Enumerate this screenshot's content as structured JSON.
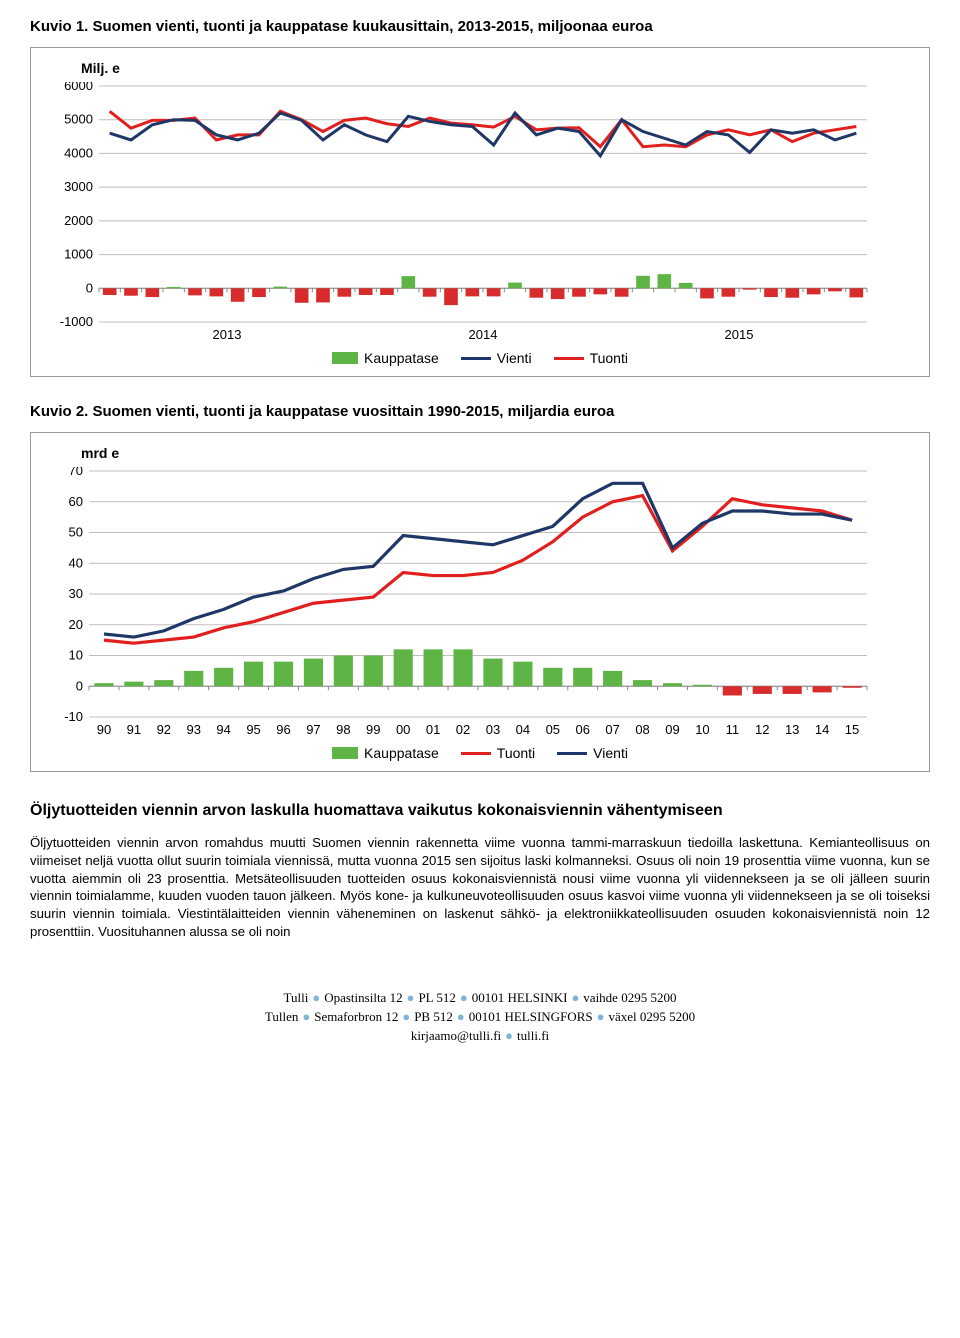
{
  "chart1": {
    "type": "combo_bar_line",
    "title": "Kuvio 1. Suomen vienti, tuonti ja kauppatase kuukausittain, 2013-2015, miljoonaa euroa",
    "axis_label": "Milj. e",
    "ylim": [
      -1000,
      6000
    ],
    "yticks": [
      -1000,
      0,
      1000,
      2000,
      3000,
      4000,
      5000,
      6000
    ],
    "x_year_labels": [
      "2013",
      "2014",
      "2015"
    ],
    "months_count": 36,
    "kauppatase": [
      -200,
      -220,
      -260,
      40,
      -210,
      -240,
      -400,
      -260,
      50,
      -430,
      -420,
      -250,
      -200,
      -200,
      360,
      -250,
      -500,
      -240,
      -240,
      170,
      -280,
      -320,
      -250,
      -180,
      -250,
      370,
      420,
      160,
      -300,
      -250,
      -40,
      -260,
      -280,
      -180,
      -90,
      -270
    ],
    "vienti": [
      4600,
      4400,
      4850,
      5000,
      4980,
      4550,
      4400,
      4600,
      5200,
      4980,
      4400,
      4850,
      4550,
      4350,
      5100,
      4950,
      4850,
      4800,
      4250,
      5200,
      4550,
      4750,
      4650,
      3930,
      5000,
      4650,
      4450,
      4250,
      4650,
      4550,
      4030,
      4700,
      4600,
      4700,
      4400,
      4600
    ],
    "tuonti": [
      5250,
      4750,
      4980,
      4980,
      5050,
      4400,
      4550,
      4550,
      5250,
      5000,
      4650,
      4980,
      5050,
      4880,
      4800,
      5050,
      4900,
      4850,
      4780,
      5100,
      4700,
      4750,
      4760,
      4200,
      5000,
      4200,
      4250,
      4200,
      4550,
      4700,
      4550,
      4700,
      4350,
      4600,
      4700,
      4800
    ],
    "legend": [
      "Kauppatase",
      "Vienti",
      "Tuonti"
    ],
    "colors": {
      "kauppatase_pos": "#5fb446",
      "kauppatase_neg": "#d82c2c",
      "vienti": "#1f3766",
      "tuonti": "#e11f1f",
      "grid": "#bfbfbf",
      "axis_text": "#000000"
    },
    "tick_fontsize": 13
  },
  "chart2": {
    "type": "combo_bar_line",
    "title": "Kuvio 2. Suomen vienti, tuonti ja kauppatase vuosittain 1990-2015, miljardia euroa",
    "axis_label": "mrd e",
    "ylim": [
      -10,
      70
    ],
    "yticks": [
      -10,
      0,
      10,
      20,
      30,
      40,
      50,
      60,
      70
    ],
    "years": [
      "90",
      "91",
      "92",
      "93",
      "94",
      "95",
      "96",
      "97",
      "98",
      "99",
      "00",
      "01",
      "02",
      "03",
      "04",
      "05",
      "06",
      "07",
      "08",
      "09",
      "10",
      "11",
      "12",
      "13",
      "14",
      "15"
    ],
    "kauppatase": [
      1,
      1.5,
      2,
      5,
      6,
      8,
      8,
      9,
      10,
      10,
      12,
      12,
      12,
      9,
      8,
      6,
      6,
      5,
      2,
      1,
      0.5,
      -3,
      -2.5,
      -2.5,
      -2,
      -0.5
    ],
    "tuonti": [
      15,
      14,
      15,
      16,
      19,
      21,
      24,
      27,
      28,
      29,
      37,
      36,
      36,
      37,
      41,
      47,
      55,
      60,
      62,
      44,
      52,
      61,
      59,
      58,
      57,
      54
    ],
    "vienti": [
      17,
      16,
      18,
      22,
      25,
      29,
      31,
      35,
      38,
      39,
      49,
      48,
      47,
      46,
      49,
      52,
      61,
      66,
      66,
      45,
      53,
      57,
      57,
      56,
      56,
      54
    ],
    "legend": [
      "Kauppatase",
      "Tuonti",
      "Vienti"
    ],
    "colors": {
      "kauppatase_pos": "#5fb446",
      "kauppatase_neg": "#d82c2c",
      "vienti": "#1f3766",
      "tuonti": "#e11f1f",
      "grid": "#bfbfbf"
    },
    "tick_fontsize": 13
  },
  "section": {
    "title": "Öljytuotteiden viennin arvon laskulla huomattava vaikutus kokonaisviennin vähentymiseen",
    "body": "Öljytuotteiden viennin arvon romahdus muutti Suomen viennin rakennetta viime vuonna tammi-marraskuun tiedoilla laskettuna. Kemianteollisuus on viimeiset neljä vuotta ollut suurin toimiala viennissä, mutta vuonna 2015 sen sijoitus laski kolmanneksi. Osuus oli noin 19 prosenttia viime vuonna, kun se vuotta aiemmin oli 23 prosenttia. Metsäteollisuuden tuotteiden osuus kokonaisviennistä nousi viime vuonna yli viidennekseen ja se oli jälleen suurin viennin toimialamme, kuuden vuoden tauon jälkeen. Myös kone- ja kulkuneuvoteollisuuden osuus kasvoi viime vuonna yli viidennekseen ja se oli toiseksi suurin viennin toimiala. Viestintälaitteiden viennin väheneminen on laskenut sähkö- ja elektroniikkateollisuuden osuuden kokonaisviennistä noin 12 prosenttiin. Vuosituhannen alussa se oli noin"
  },
  "footer": {
    "line1_parts": [
      "Tulli",
      "Opastinsilta 12",
      "PL 512",
      "00101 HELSINKI",
      "vaihde 0295 5200"
    ],
    "line2_parts": [
      "Tullen",
      "Semaforbron 12",
      "PB 512",
      "00101 HELSINGFORS",
      "växel 0295 5200"
    ],
    "line3_parts": [
      "kirjaamo@tulli.fi",
      "tulli.fi"
    ]
  }
}
